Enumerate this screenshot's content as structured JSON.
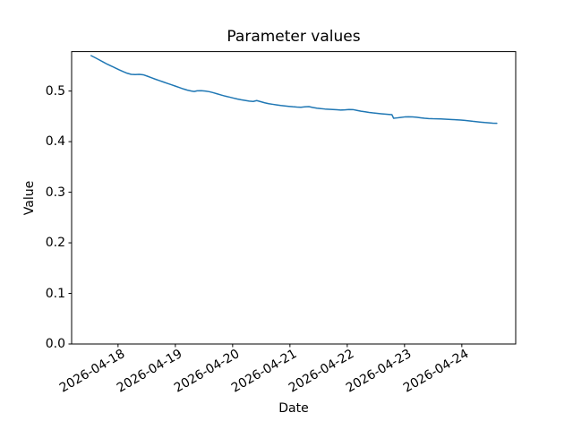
{
  "figure": {
    "background_color": "#ffffff",
    "text_color": "#000000"
  },
  "chart_data": {
    "type": "line",
    "title": "Parameter values",
    "xlabel": "Date",
    "ylabel": "Value",
    "grid": false,
    "legend": "none",
    "line_color": "#1f77b4",
    "axis_color": "#000000",
    "x_tick_labels": [
      "2026-04-18",
      "2026-04-19",
      "2026-04-20",
      "2026-04-21",
      "2026-04-22",
      "2026-04-23",
      "2026-04-24"
    ],
    "x_tick_days": [
      0,
      1,
      2,
      3,
      4,
      5,
      6
    ],
    "x_tick_rotation_deg": 30,
    "xlim_days": [
      -0.81,
      6.94
    ],
    "y_tick_labels": [
      "0.0",
      "0.1",
      "0.2",
      "0.3",
      "0.4",
      "0.5"
    ],
    "y_tick_values": [
      0.0,
      0.1,
      0.2,
      0.3,
      0.4,
      0.5
    ],
    "ylim": [
      0,
      0.578
    ],
    "series": [
      {
        "name": "parameter-value",
        "color": "#1f77b4",
        "points_day_value": [
          [
            -0.47,
            0.57
          ],
          [
            -0.4,
            0.566
          ],
          [
            -0.33,
            0.5618
          ],
          [
            -0.26,
            0.5575
          ],
          [
            -0.19,
            0.5532
          ],
          [
            -0.12,
            0.5495
          ],
          [
            -0.05,
            0.5458
          ],
          [
            0.02,
            0.542
          ],
          [
            0.09,
            0.5385
          ],
          [
            0.16,
            0.5352
          ],
          [
            0.23,
            0.533
          ],
          [
            0.3,
            0.5325
          ],
          [
            0.37,
            0.533
          ],
          [
            0.44,
            0.5322
          ],
          [
            0.51,
            0.5295
          ],
          [
            0.58,
            0.5265
          ],
          [
            0.65,
            0.5235
          ],
          [
            0.72,
            0.5207
          ],
          [
            0.79,
            0.518
          ],
          [
            0.86,
            0.5152
          ],
          [
            0.93,
            0.5125
          ],
          [
            1.0,
            0.5098
          ],
          [
            1.07,
            0.507
          ],
          [
            1.14,
            0.5042
          ],
          [
            1.21,
            0.5018
          ],
          [
            1.28,
            0.5
          ],
          [
            1.33,
            0.4992
          ],
          [
            1.38,
            0.5005
          ],
          [
            1.45,
            0.5008
          ],
          [
            1.52,
            0.5
          ],
          [
            1.59,
            0.4988
          ],
          [
            1.66,
            0.4968
          ],
          [
            1.73,
            0.4945
          ],
          [
            1.8,
            0.4922
          ],
          [
            1.87,
            0.49
          ],
          [
            1.94,
            0.4882
          ],
          [
            2.01,
            0.4862
          ],
          [
            2.08,
            0.4843
          ],
          [
            2.15,
            0.4828
          ],
          [
            2.22,
            0.4815
          ],
          [
            2.29,
            0.4802
          ],
          [
            2.36,
            0.4795
          ],
          [
            2.42,
            0.4812
          ],
          [
            2.49,
            0.479
          ],
          [
            2.56,
            0.4768
          ],
          [
            2.63,
            0.475
          ],
          [
            2.7,
            0.4738
          ],
          [
            2.77,
            0.4726
          ],
          [
            2.84,
            0.4715
          ],
          [
            2.91,
            0.4706
          ],
          [
            2.98,
            0.4698
          ],
          [
            3.05,
            0.469
          ],
          [
            3.12,
            0.4684
          ],
          [
            3.19,
            0.468
          ],
          [
            3.26,
            0.4688
          ],
          [
            3.33,
            0.4692
          ],
          [
            3.4,
            0.4675
          ],
          [
            3.47,
            0.4662
          ],
          [
            3.54,
            0.4652
          ],
          [
            3.61,
            0.4645
          ],
          [
            3.68,
            0.464
          ],
          [
            3.75,
            0.4636
          ],
          [
            3.82,
            0.463
          ],
          [
            3.89,
            0.4625
          ],
          [
            3.96,
            0.4628
          ],
          [
            4.03,
            0.4636
          ],
          [
            4.1,
            0.4634
          ],
          [
            4.17,
            0.4618
          ],
          [
            4.24,
            0.4602
          ],
          [
            4.31,
            0.459
          ],
          [
            4.38,
            0.4578
          ],
          [
            4.45,
            0.4568
          ],
          [
            4.52,
            0.456
          ],
          [
            4.59,
            0.4552
          ],
          [
            4.66,
            0.4545
          ],
          [
            4.73,
            0.4538
          ],
          [
            4.78,
            0.4533
          ],
          [
            4.81,
            0.4462
          ],
          [
            4.86,
            0.4468
          ],
          [
            4.93,
            0.4478
          ],
          [
            5.0,
            0.4488
          ],
          [
            5.07,
            0.4492
          ],
          [
            5.14,
            0.449
          ],
          [
            5.21,
            0.4482
          ],
          [
            5.28,
            0.4472
          ],
          [
            5.35,
            0.4462
          ],
          [
            5.42,
            0.4456
          ],
          [
            5.49,
            0.4453
          ],
          [
            5.56,
            0.4452
          ],
          [
            5.63,
            0.445
          ],
          [
            5.7,
            0.4445
          ],
          [
            5.77,
            0.444
          ],
          [
            5.84,
            0.4436
          ],
          [
            5.91,
            0.4432
          ],
          [
            5.98,
            0.4428
          ],
          [
            6.05,
            0.442
          ],
          [
            6.12,
            0.4412
          ],
          [
            6.19,
            0.4402
          ],
          [
            6.26,
            0.4394
          ],
          [
            6.33,
            0.4386
          ],
          [
            6.4,
            0.4378
          ],
          [
            6.47,
            0.4372
          ],
          [
            6.54,
            0.4366
          ],
          [
            6.61,
            0.4362
          ]
        ]
      }
    ]
  }
}
